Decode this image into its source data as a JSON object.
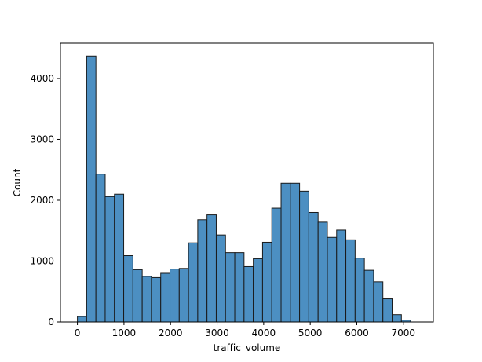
{
  "chart_data": {
    "type": "bar",
    "title": "",
    "xlabel": "traffic_volume",
    "ylabel": "Count",
    "bar_color": "#4c8fc2",
    "edge_color": "#1a1a1a",
    "bin_width": 198.8,
    "x_start": 0,
    "xlim": [
      -364,
      7644
    ],
    "ylim": [
      0,
      4580
    ],
    "xticks": [
      0,
      1000,
      2000,
      3000,
      4000,
      5000,
      6000,
      7000
    ],
    "yticks": [
      0,
      1000,
      2000,
      3000,
      4000
    ],
    "values": [
      90,
      4370,
      2430,
      2060,
      2100,
      1090,
      860,
      750,
      730,
      800,
      870,
      880,
      1300,
      1680,
      1760,
      1430,
      1140,
      1140,
      910,
      1040,
      1310,
      1870,
      2280,
      2280,
      2150,
      1800,
      1640,
      1390,
      1510,
      1350,
      1050,
      850,
      660,
      380,
      120,
      30
    ],
    "grid": false,
    "legend": "none"
  }
}
